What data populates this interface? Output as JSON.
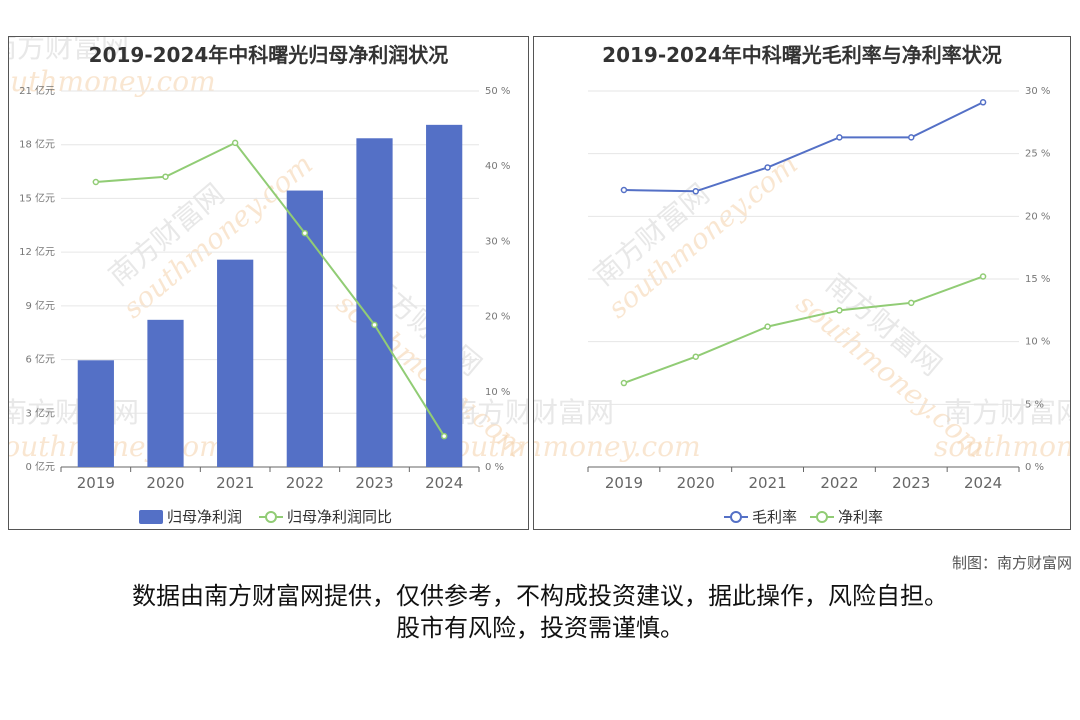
{
  "footer": {
    "credit": "制图：南方财富网",
    "disclaimer_line1": "数据由南方财富网提供，仅供参考，不构成投资建议，据此操作，风险自担。",
    "disclaimer_line2": "股市有风险，投资需谨慎。"
  },
  "watermark": {
    "cn": "南方财富网",
    "en": "southmoney.com"
  },
  "chart_data": [
    {
      "type": "bar",
      "title": "2019-2024年中科曙光归母净利润状况",
      "categories": [
        "2019",
        "2020",
        "2021",
        "2022",
        "2023",
        "2024"
      ],
      "series": [
        {
          "name": "归母净利润",
          "type": "bar",
          "axis": "left",
          "color": "#5470c6",
          "values": [
            5.96,
            8.22,
            11.58,
            15.44,
            18.36,
            19.11
          ]
        },
        {
          "name": "归母净利润同比",
          "type": "line",
          "axis": "right",
          "color": "#91cc75",
          "values": [
            37.9,
            38.6,
            43.1,
            31.1,
            18.9,
            4.1
          ]
        }
      ],
      "y_left": {
        "min": 0,
        "max": 21,
        "step": 3,
        "unit": "亿元"
      },
      "y_right": {
        "min": 0,
        "max": 50,
        "step": 10,
        "unit": "%"
      },
      "legend": "bottom-center",
      "grid": true
    },
    {
      "type": "line",
      "title": "2019-2024年中科曙光毛利率与净利率状况",
      "categories": [
        "2019",
        "2020",
        "2021",
        "2022",
        "2023",
        "2024"
      ],
      "series": [
        {
          "name": "毛利率",
          "color": "#5470c6",
          "values": [
            22.1,
            22.0,
            23.9,
            26.3,
            26.3,
            29.1
          ]
        },
        {
          "name": "净利率",
          "color": "#91cc75",
          "values": [
            6.7,
            8.8,
            11.2,
            12.5,
            13.1,
            15.2
          ]
        }
      ],
      "y_right": {
        "min": 0,
        "max": 30,
        "step": 5,
        "unit": "%"
      },
      "legend": "bottom-center",
      "grid": true
    }
  ]
}
